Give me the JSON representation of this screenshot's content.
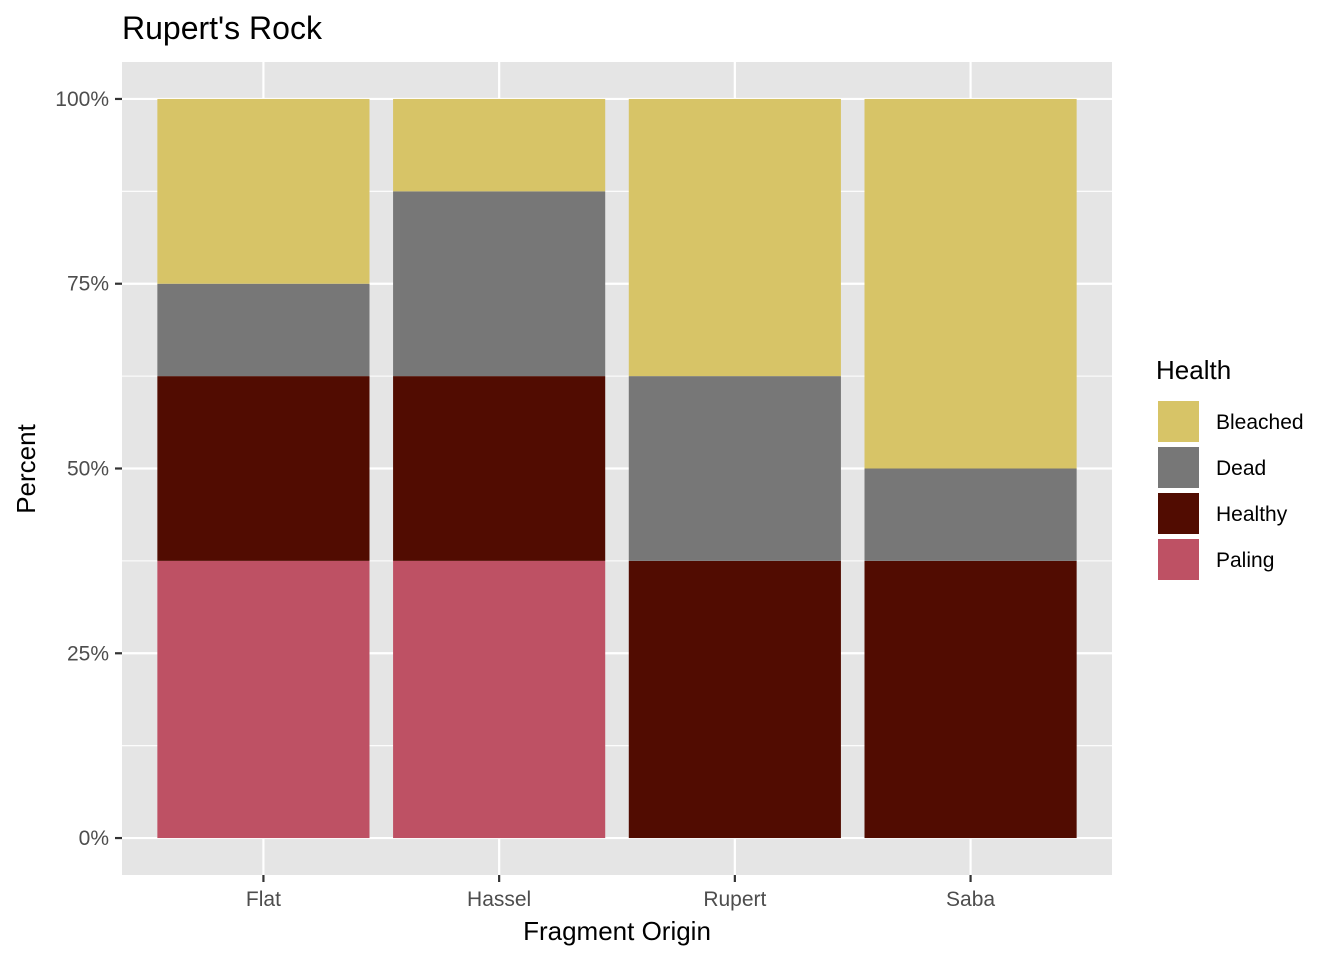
{
  "chart_data": {
    "type": "bar",
    "stacked": true,
    "title": "Rupert's Rock",
    "xlabel": "Fragment Origin",
    "ylabel": "Percent",
    "categories": [
      "Flat",
      "Hassel",
      "Rupert",
      "Saba"
    ],
    "series": [
      {
        "name": "Paling",
        "color": "#be5164",
        "values": [
          37.5,
          37.5,
          0,
          0
        ]
      },
      {
        "name": "Healthy",
        "color": "#510c01",
        "values": [
          25,
          25,
          37.5,
          37.5
        ]
      },
      {
        "name": "Dead",
        "color": "#777777",
        "values": [
          12.5,
          25,
          25,
          12.5
        ]
      },
      {
        "name": "Bleached",
        "color": "#d7c467",
        "values": [
          25,
          12.5,
          37.5,
          50
        ]
      }
    ],
    "ylim": [
      -5,
      105
    ],
    "yticks": [
      0,
      25,
      50,
      75,
      100
    ],
    "ytick_labels": [
      "0%",
      "25%",
      "50%",
      "75%",
      "100%"
    ],
    "legend": {
      "title": "Health",
      "position": "right",
      "items": [
        "Bleached",
        "Dead",
        "Healthy",
        "Paling"
      ]
    },
    "grid": true,
    "panel_background": "#e5e5e5",
    "grid_color": "#ffffff"
  }
}
